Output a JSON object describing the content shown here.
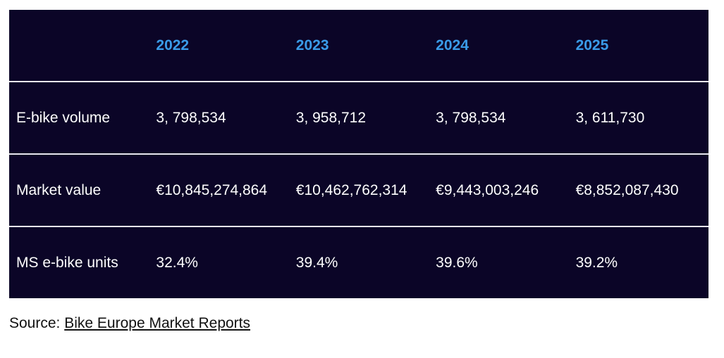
{
  "table": {
    "header": [
      "",
      "2022",
      "2023",
      "2024",
      "2025"
    ],
    "rows": [
      [
        "E-bike volume",
        "3, 798,534",
        "3, 958,712",
        "3, 798,534",
        "3, 611,730"
      ],
      [
        "Market value",
        "€10,845,274,864",
        "€10,462,762,314",
        "€9,443,003,246",
        "€8,852,087,430"
      ],
      [
        "MS e-bike units",
        "32.4%",
        "39.4%",
        "39.6%",
        "39.2%"
      ]
    ]
  },
  "source": {
    "label": "Source:",
    "link": "Bike Europe Market Reports"
  }
}
